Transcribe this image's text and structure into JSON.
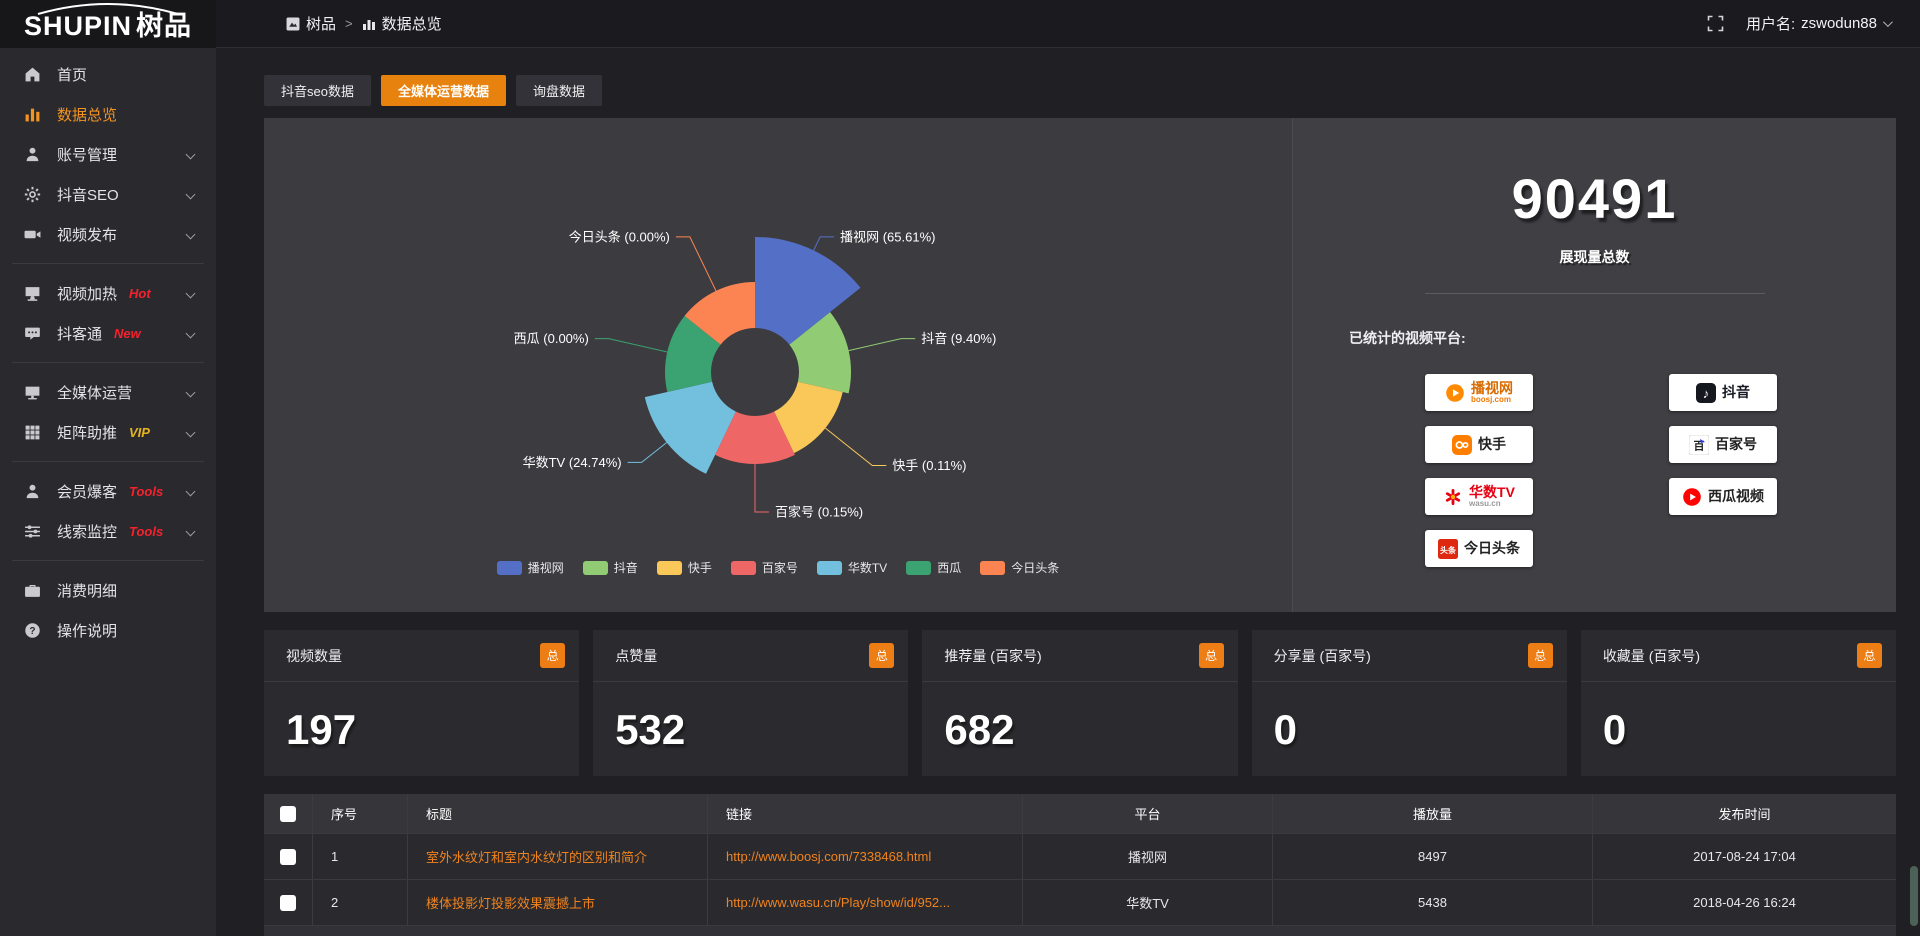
{
  "colors": {
    "accent": "#ed7d15",
    "tab_active": "#e8820e",
    "link_orange": "#f0831e",
    "tag_red": "#f5222d",
    "tag_yellow": "#e6b422"
  },
  "topbar": {
    "logo_en": "SHUPIN",
    "logo_cn": "树品",
    "breadcrumb_home": "树品",
    "breadcrumb_sep": ">",
    "breadcrumb_current": "数据总览",
    "username_label": "用户名:",
    "username": "zswodun88"
  },
  "sidebar": {
    "items": [
      {
        "label": "首页"
      },
      {
        "label": "数据总览"
      },
      {
        "label": "账号管理"
      },
      {
        "label": "抖音SEO"
      },
      {
        "label": "视频发布"
      },
      {
        "label": "视频加热",
        "tag": "Hot",
        "tag_color": "#f5222d"
      },
      {
        "label": "抖客通",
        "tag": "New",
        "tag_color": "#f5222d"
      },
      {
        "label": "全媒体运营"
      },
      {
        "label": "矩阵助推",
        "tag": "VIP",
        "tag_color": "#e6b422"
      },
      {
        "label": "会员爆客",
        "tag": "Tools",
        "tag_color": "#f5222d"
      },
      {
        "label": "线索监控",
        "tag": "Tools",
        "tag_color": "#f5222d"
      },
      {
        "label": "消费明细"
      },
      {
        "label": "操作说明"
      }
    ]
  },
  "tabs": [
    {
      "label": "抖音seo数据"
    },
    {
      "label": "全媒体运营数据",
      "active": true
    },
    {
      "label": "询盘数据"
    }
  ],
  "chart_data": {
    "type": "pie",
    "variant": "nightingale-rose",
    "legend_position": "bottom",
    "inner_radius": 44,
    "start_angle_deg": -90,
    "equal_angle": true,
    "series": [
      {
        "name": "播视网",
        "percent": 65.61,
        "label": "播视网 (65.61%)",
        "color": "#5470c6",
        "outer_radius": 135,
        "label_r": 150
      },
      {
        "name": "抖音",
        "percent": 9.4,
        "label": "抖音 (9.40%)",
        "color": "#91cc75",
        "outer_radius": 96,
        "label_r": 150
      },
      {
        "name": "快手",
        "percent": 0.11,
        "label": "快手 (0.11%)",
        "color": "#fac858",
        "outer_radius": 90,
        "label_r": 150
      },
      {
        "name": "百家号",
        "percent": 0.15,
        "label": "百家号 (0.15%)",
        "color": "#ee6666",
        "outer_radius": 92,
        "label_r": 140
      },
      {
        "name": "华数TV",
        "percent": 24.74,
        "label": "华数TV (24.74%)",
        "color": "#73c0de",
        "outer_radius": 113,
        "label_r": 145
      },
      {
        "name": "西瓜",
        "percent": 0.0,
        "label": "西瓜 (0.00%)",
        "color": "#3ba272",
        "outer_radius": 90,
        "label_r": 150
      },
      {
        "name": "今日头条",
        "percent": 0.0,
        "label": "今日头条 (0.00%)",
        "color": "#fc8452",
        "outer_radius": 90,
        "label_r": 150
      }
    ]
  },
  "summary": {
    "total_value": "90491",
    "total_label": "展现量总数",
    "platforms_title": "已统计的视频平台:",
    "badges_left": [
      {
        "label": "播视网",
        "sub": "boosj.com",
        "label_color": "#d96a00"
      },
      {
        "label": "快手",
        "label_color": "#222222"
      },
      {
        "label": "华数TV",
        "sub": "wasu.cn",
        "label_color": "#e60012"
      },
      {
        "label": "今日头条",
        "label_color": "#222222"
      }
    ],
    "badges_right": [
      {
        "label": "抖音",
        "label_color": "#161823"
      },
      {
        "label": "百家号",
        "label_color": "#222222"
      },
      {
        "label": "西瓜视频",
        "label_color": "#222222"
      }
    ]
  },
  "cards": [
    {
      "title": "视频数量",
      "badge": "总",
      "value": "197"
    },
    {
      "title": "点赞量",
      "badge": "总",
      "value": "532"
    },
    {
      "title": "推荐量 (百家号)",
      "badge": "总",
      "value": "682"
    },
    {
      "title": "分享量 (百家号)",
      "badge": "总",
      "value": "0"
    },
    {
      "title": "收藏量 (百家号)",
      "badge": "总",
      "value": "0"
    }
  ],
  "table": {
    "columns": [
      "序号",
      "标题",
      "链接",
      "平台",
      "播放量",
      "发布时间"
    ],
    "rows": [
      {
        "num": "1",
        "title": "室外水纹灯和室内水纹灯的区别和简介",
        "link": "http://www.boosj.com/7338468.html",
        "platform": "播视网",
        "plays": "8497",
        "time": "2017-08-24 17:04"
      },
      {
        "num": "2",
        "title": "楼体投影灯投影效果震撼上市",
        "link": "http://www.wasu.cn/Play/show/id/952...",
        "platform": "华数TV",
        "plays": "5438",
        "time": "2018-04-26 16:24"
      }
    ]
  }
}
